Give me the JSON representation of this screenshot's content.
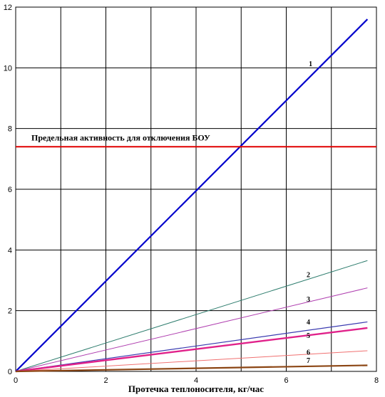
{
  "chart_data": {
    "type": "line",
    "title": "",
    "xlabel": "Протечка теплоносителя, кг/час",
    "ylabel": "",
    "xlim": [
      0,
      8
    ],
    "ylim": [
      0,
      12
    ],
    "xticks": [
      "0",
      "2",
      "4",
      "6",
      "8"
    ],
    "yticks": [
      "0",
      "2",
      "4",
      "6",
      "8",
      "10",
      "12"
    ],
    "grid": true,
    "x": [
      0,
      7.8
    ],
    "series": [
      {
        "name": "1",
        "color": "#0000cc",
        "values": [
          0,
          11.6
        ]
      },
      {
        "name": "2",
        "color": "#2e7d6e",
        "values": [
          0,
          3.65
        ]
      },
      {
        "name": "3",
        "color": "#b040b0",
        "values": [
          0,
          2.75
        ]
      },
      {
        "name": "4",
        "color": "#3a3ab0",
        "values": [
          0,
          1.63
        ]
      },
      {
        "name": "5",
        "color": "#e0218a",
        "values": [
          0,
          1.43
        ]
      },
      {
        "name": "6",
        "color": "#f07070",
        "values": [
          0,
          0.68
        ]
      },
      {
        "name": "7",
        "color": "#8b4513",
        "values": [
          0,
          0.2
        ]
      }
    ],
    "threshold": {
      "value": 7.4,
      "color": "#e00000",
      "label": "Предельная активность для отключения БОУ"
    }
  }
}
